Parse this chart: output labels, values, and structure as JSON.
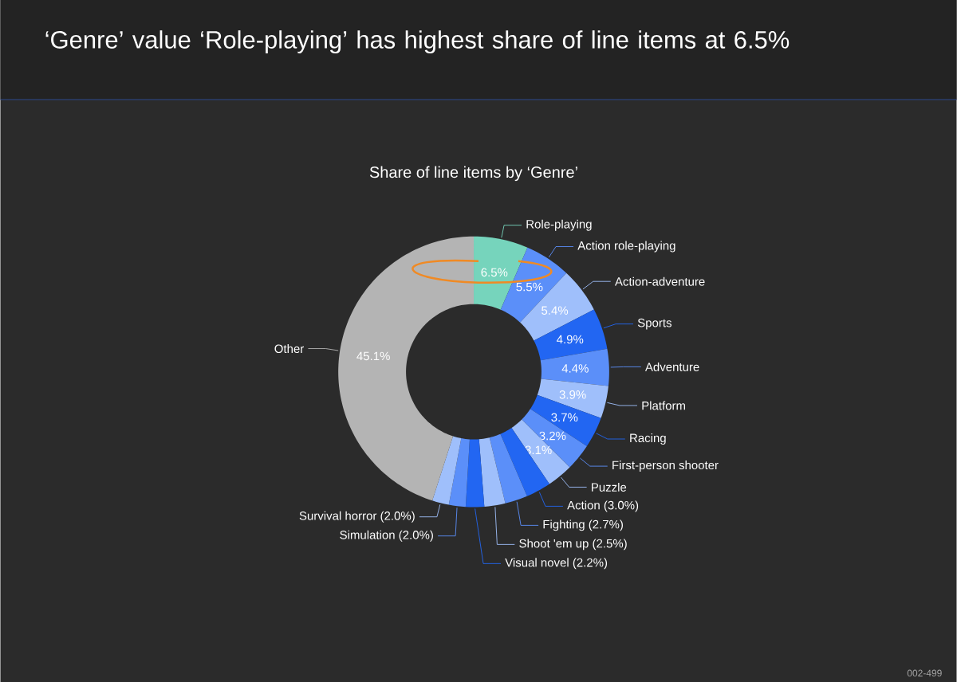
{
  "chart_data": {
    "type": "donut",
    "title": "‘Genre’ value ‘Role-playing’ has highest share of line items at 6.5%",
    "subtitle": "Share of line items by ‘Genre’",
    "categories": [
      "Role-playing",
      "Action role-playing",
      "Action-adventure",
      "Sports",
      "Adventure",
      "Platform",
      "Racing",
      "First-person shooter",
      "Puzzle",
      "Action (3.0%)",
      "Fighting (2.7%)",
      "Shoot 'em up (2.5%)",
      "Visual novel (2.2%)",
      "Simulation (2.0%)",
      "Survival horror (2.0%)",
      "Other"
    ],
    "values": [
      6.5,
      5.5,
      5.4,
      4.9,
      4.4,
      3.9,
      3.7,
      3.2,
      3.1,
      3.0,
      2.7,
      2.5,
      2.2,
      2.0,
      2.0,
      45.1
    ],
    "colors": [
      "#76d4bc",
      "#5b8ff9",
      "#9fbffb",
      "#2266f2",
      "#5b8ff9",
      "#9fbffb",
      "#2266f2",
      "#5b8ff9",
      "#9fbffb",
      "#2266f2",
      "#5b8ff9",
      "#9fbffb",
      "#2266f2",
      "#5b8ff9",
      "#9fbffb",
      "#b4b4b4"
    ],
    "value_labels": [
      "6.5%",
      "5.5%",
      "5.4%",
      "4.9%",
      "4.4%",
      "3.9%",
      "3.7%",
      "3.2%",
      "3.1%",
      null,
      null,
      null,
      null,
      null,
      null,
      "45.1%"
    ],
    "annotations": [
      "002-499"
    ]
  }
}
